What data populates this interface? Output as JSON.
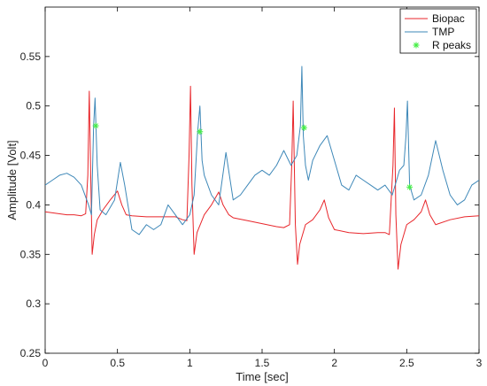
{
  "chart_data": {
    "type": "line",
    "xlabel": "Time [sec]",
    "ylabel": "Amplitude [Volt]",
    "xlim": [
      0,
      3
    ],
    "ylim": [
      0.25,
      0.6
    ],
    "xticks": [
      "0",
      "0.5",
      "1",
      "1.5",
      "2",
      "2.5",
      "3"
    ],
    "yticks": [
      "0.25",
      "0.3",
      "0.35",
      "0.4",
      "0.45",
      "0.5",
      "0.55"
    ],
    "grid": false,
    "legend_position": "top-right",
    "series": [
      {
        "name": "Biopac",
        "color": "#e8262b",
        "style": "line",
        "x": [
          0.0,
          0.05,
          0.1,
          0.15,
          0.2,
          0.25,
          0.28,
          0.295,
          0.305,
          0.315,
          0.325,
          0.34,
          0.36,
          0.4,
          0.45,
          0.5,
          0.53,
          0.56,
          0.6,
          0.7,
          0.8,
          0.9,
          0.95,
          0.98,
          0.995,
          1.005,
          1.015,
          1.03,
          1.05,
          1.1,
          1.15,
          1.2,
          1.23,
          1.27,
          1.3,
          1.4,
          1.5,
          1.6,
          1.65,
          1.69,
          1.705,
          1.715,
          1.73,
          1.745,
          1.76,
          1.8,
          1.85,
          1.9,
          1.93,
          1.96,
          2.0,
          2.1,
          2.2,
          2.3,
          2.35,
          2.38,
          2.405,
          2.415,
          2.425,
          2.44,
          2.46,
          2.5,
          2.55,
          2.6,
          2.63,
          2.66,
          2.7,
          2.8,
          2.9,
          3.0
        ],
        "y": [
          0.393,
          0.392,
          0.391,
          0.39,
          0.39,
          0.389,
          0.391,
          0.43,
          0.515,
          0.43,
          0.35,
          0.37,
          0.385,
          0.395,
          0.405,
          0.414,
          0.4,
          0.39,
          0.389,
          0.388,
          0.388,
          0.388,
          0.385,
          0.384,
          0.45,
          0.52,
          0.42,
          0.35,
          0.372,
          0.39,
          0.4,
          0.413,
          0.4,
          0.39,
          0.387,
          0.384,
          0.381,
          0.378,
          0.377,
          0.38,
          0.44,
          0.505,
          0.38,
          0.34,
          0.36,
          0.38,
          0.385,
          0.395,
          0.405,
          0.387,
          0.375,
          0.372,
          0.371,
          0.372,
          0.372,
          0.37,
          0.44,
          0.498,
          0.39,
          0.335,
          0.36,
          0.38,
          0.385,
          0.393,
          0.405,
          0.39,
          0.38,
          0.385,
          0.388,
          0.389
        ]
      },
      {
        "name": "TMP",
        "color": "#3e88b8",
        "style": "line",
        "x": [
          0.0,
          0.05,
          0.1,
          0.15,
          0.2,
          0.25,
          0.3,
          0.32,
          0.335,
          0.345,
          0.36,
          0.38,
          0.42,
          0.48,
          0.52,
          0.55,
          0.6,
          0.65,
          0.7,
          0.75,
          0.8,
          0.85,
          0.9,
          0.95,
          1.0,
          1.03,
          1.055,
          1.07,
          1.085,
          1.1,
          1.15,
          1.2,
          1.25,
          1.3,
          1.35,
          1.4,
          1.45,
          1.5,
          1.55,
          1.6,
          1.65,
          1.7,
          1.74,
          1.765,
          1.775,
          1.785,
          1.8,
          1.82,
          1.85,
          1.9,
          1.95,
          2.0,
          2.05,
          2.1,
          2.15,
          2.2,
          2.25,
          2.3,
          2.35,
          2.4,
          2.45,
          2.48,
          2.495,
          2.505,
          2.52,
          2.55,
          2.6,
          2.65,
          2.7,
          2.75,
          2.8,
          2.85,
          2.9,
          2.95,
          3.0
        ],
        "y": [
          0.42,
          0.425,
          0.43,
          0.432,
          0.428,
          0.42,
          0.4,
          0.39,
          0.48,
          0.508,
          0.44,
          0.395,
          0.39,
          0.405,
          0.443,
          0.42,
          0.375,
          0.37,
          0.38,
          0.375,
          0.38,
          0.4,
          0.39,
          0.38,
          0.39,
          0.41,
          0.475,
          0.5,
          0.445,
          0.43,
          0.41,
          0.4,
          0.453,
          0.405,
          0.41,
          0.42,
          0.43,
          0.435,
          0.43,
          0.44,
          0.455,
          0.44,
          0.45,
          0.48,
          0.54,
          0.47,
          0.44,
          0.425,
          0.445,
          0.46,
          0.47,
          0.445,
          0.42,
          0.415,
          0.43,
          0.425,
          0.42,
          0.415,
          0.42,
          0.41,
          0.435,
          0.44,
          0.47,
          0.505,
          0.42,
          0.405,
          0.41,
          0.43,
          0.465,
          0.435,
          0.41,
          0.4,
          0.405,
          0.42,
          0.425
        ]
      },
      {
        "name": "R peaks",
        "color": "#44ee44",
        "style": "marker",
        "x": [
          0.35,
          1.07,
          1.79,
          2.52
        ],
        "y": [
          0.48,
          0.474,
          0.478,
          0.418
        ]
      }
    ]
  }
}
